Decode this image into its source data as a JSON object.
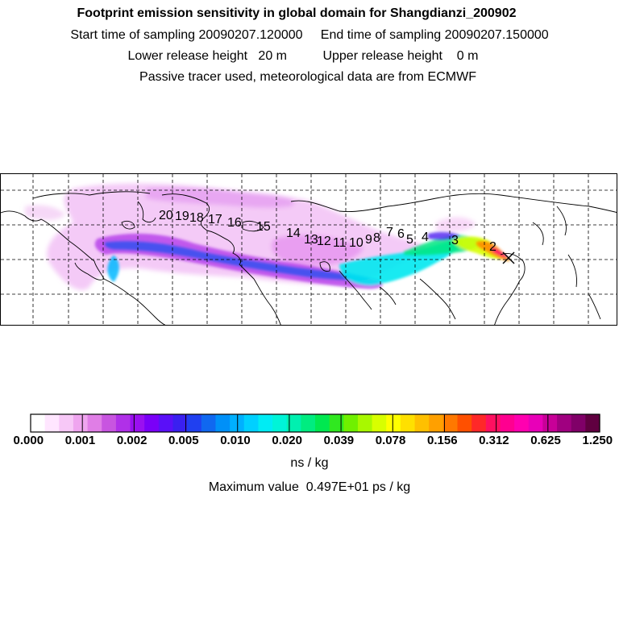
{
  "header": {
    "title": "Footprint emission sensitivity in global domain for Shangdianzi_200902",
    "start_label": "Start time of sampling",
    "start_value": "20090207.120000",
    "end_label": "End time of sampling",
    "end_value": "20090207.150000",
    "lower_label": "Lower release height",
    "lower_value": "20 m",
    "upper_label": "Upper release height",
    "upper_value": "0 m",
    "note": "Passive tracer used, meteorological data are from ECMWF"
  },
  "map": {
    "trajectory_labels": [
      "2",
      "3",
      "4",
      "5",
      "6",
      "7",
      "8",
      "9",
      "10",
      "11",
      "12",
      "13",
      "14",
      "15",
      "16",
      "17",
      "18",
      "19",
      "20"
    ],
    "receptor_marker": "x-mark-icon"
  },
  "colorbar": {
    "tick_labels": [
      "0.000",
      "0.001",
      "0.002",
      "0.005",
      "0.010",
      "0.020",
      "0.039",
      "0.078",
      "0.156",
      "0.312",
      "0.625",
      "1.250"
    ],
    "colors": [
      "#ffffff",
      "#ffe6ff",
      "#f7c8f7",
      "#efa5ef",
      "#e07ee6",
      "#c855e0",
      "#b030e8",
      "#9a10f0",
      "#7a00f8",
      "#5a10f8",
      "#3a20f0",
      "#2040f0",
      "#1068f0",
      "#0090f8",
      "#00b0ff",
      "#00d0ff",
      "#00ecf4",
      "#00f4d8",
      "#00f0b0",
      "#00ec80",
      "#00e850",
      "#30e820",
      "#70f000",
      "#a8f800",
      "#d8ff00",
      "#ffff00",
      "#ffe000",
      "#ffc000",
      "#ffa000",
      "#ff7800",
      "#ff5000",
      "#ff2828",
      "#ff1060",
      "#ff0090",
      "#ff00b0",
      "#e800b8",
      "#c80098",
      "#a00080",
      "#800068",
      "#600040"
    ],
    "unit": "ns / kg"
  },
  "maximum": {
    "label": "Maximum value",
    "value": "0.497E+01 ps / kg"
  }
}
